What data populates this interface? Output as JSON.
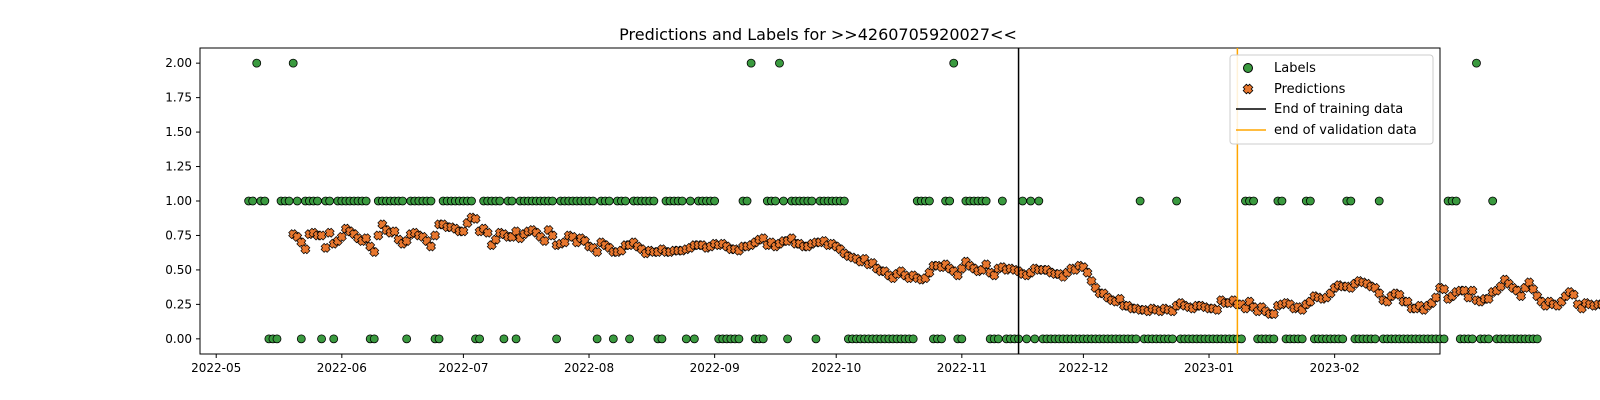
{
  "chart_data": {
    "type": "scatter",
    "title": "Predictions and Labels for >>4260705920027<<",
    "xlabel": "",
    "ylabel": "",
    "x_range": [
      "2022-04-27",
      "2023-02-27"
    ],
    "ylim": [
      -0.11,
      2.11
    ],
    "grid": false,
    "legend_position": "top-right",
    "x_ticks": [
      "2022-05",
      "2022-06",
      "2022-07",
      "2022-08",
      "2022-09",
      "2022-10",
      "2022-11",
      "2022-12",
      "2023-01",
      "2023-02"
    ],
    "x_tick_dates": [
      "2022-05-01",
      "2022-06-01",
      "2022-07-01",
      "2022-08-01",
      "2022-09-01",
      "2022-10-01",
      "2022-11-01",
      "2022-12-01",
      "2023-01-01",
      "2023-02-01"
    ],
    "y_ticks": [
      "0.00",
      "0.25",
      "0.50",
      "0.75",
      "1.00",
      "1.25",
      "1.50",
      "1.75",
      "2.00"
    ],
    "y_tick_values": [
      0,
      0.25,
      0.5,
      0.75,
      1,
      1.25,
      1.5,
      1.75,
      2
    ],
    "label_start_date": "2022-05-09",
    "labels_values": [
      1,
      1,
      2,
      1,
      1,
      0,
      0,
      0,
      1,
      1,
      1,
      2,
      1,
      0,
      1,
      1,
      1,
      1,
      0,
      1,
      1,
      0,
      1,
      1,
      1,
      1,
      1,
      1,
      1,
      1,
      0,
      0,
      1,
      1,
      1,
      1,
      1,
      1,
      1,
      0,
      1,
      1,
      1,
      1,
      1,
      1,
      0,
      0,
      1,
      1,
      1,
      1,
      1,
      1,
      1,
      1,
      0,
      0,
      1,
      1,
      1,
      1,
      1,
      0,
      1,
      1,
      0,
      1,
      1,
      1,
      1,
      1,
      1,
      1,
      1,
      1,
      0,
      1,
      1,
      1,
      1,
      1,
      1,
      1,
      1,
      1,
      0,
      1,
      1,
      1,
      0,
      1,
      1,
      1,
      0,
      1,
      1,
      1,
      1,
      1,
      1,
      0,
      0,
      1,
      1,
      1,
      1,
      1,
      0,
      1,
      0,
      1,
      1,
      1,
      1,
      1,
      0,
      0,
      0,
      0,
      0,
      0,
      1,
      1,
      2,
      0,
      0,
      0,
      1,
      1,
      1,
      2,
      1,
      0,
      1,
      1,
      1,
      1,
      1,
      1,
      0,
      1,
      1,
      1,
      1,
      1,
      1,
      1,
      0,
      0,
      0,
      0,
      0,
      0,
      0,
      0,
      0,
      0,
      0,
      0,
      0,
      0,
      0,
      0,
      0,
      1,
      1,
      1,
      1,
      0,
      0,
      0,
      1,
      1,
      2,
      0,
      0,
      1,
      1,
      1,
      1,
      1,
      1,
      0,
      0,
      0,
      1,
      0,
      0,
      0,
      0,
      1,
      0,
      1,
      0,
      1,
      0,
      0,
      0,
      0,
      0,
      0,
      0,
      0,
      0,
      0,
      0,
      0,
      0,
      0,
      0,
      0,
      0,
      0,
      0,
      0,
      0,
      0,
      0,
      0,
      1,
      0,
      0,
      0,
      0,
      0,
      0,
      0,
      0,
      1,
      0,
      0,
      0,
      0,
      0,
      0,
      0,
      0,
      0,
      0,
      0,
      0,
      0,
      0,
      0,
      0,
      1,
      1,
      1,
      0,
      0,
      0,
      0,
      0,
      1,
      1,
      0,
      0,
      0,
      0,
      0,
      1,
      1,
      0,
      0,
      0,
      0,
      0,
      0,
      0,
      0,
      1,
      1,
      0,
      0,
      0,
      0,
      0,
      0,
      1,
      0,
      0,
      0,
      0,
      0,
      0,
      0,
      0,
      0,
      0,
      0,
      0,
      0,
      0,
      0,
      0,
      1,
      1,
      1,
      0,
      0,
      0,
      0,
      2,
      0,
      0,
      0,
      1,
      0,
      0,
      0,
      0,
      0,
      0,
      0,
      0,
      0,
      0,
      0
    ],
    "prediction_start_date": "2022-05-20",
    "predictions_values": [
      0.76,
      0.74,
      0.7,
      0.65,
      0.76,
      0.77,
      0.75,
      0.75,
      0.66,
      0.77,
      0.69,
      0.71,
      0.74,
      0.8,
      0.78,
      0.76,
      0.73,
      0.71,
      0.73,
      0.67,
      0.63,
      0.75,
      0.83,
      0.79,
      0.77,
      0.78,
      0.72,
      0.69,
      0.71,
      0.76,
      0.77,
      0.75,
      0.74,
      0.71,
      0.67,
      0.75,
      0.83,
      0.83,
      0.81,
      0.81,
      0.8,
      0.78,
      0.78,
      0.84,
      0.88,
      0.87,
      0.78,
      0.8,
      0.77,
      0.68,
      0.72,
      0.77,
      0.76,
      0.74,
      0.74,
      0.78,
      0.73,
      0.76,
      0.78,
      0.79,
      0.77,
      0.74,
      0.71,
      0.79,
      0.75,
      0.68,
      0.69,
      0.7,
      0.75,
      0.74,
      0.7,
      0.73,
      0.71,
      0.67,
      0.66,
      0.63,
      0.7,
      0.68,
      0.66,
      0.63,
      0.63,
      0.64,
      0.68,
      0.68,
      0.7,
      0.67,
      0.65,
      0.62,
      0.64,
      0.63,
      0.63,
      0.65,
      0.63,
      0.63,
      0.64,
      0.64,
      0.64,
      0.65,
      0.66,
      0.68,
      0.68,
      0.68,
      0.66,
      0.67,
      0.69,
      0.68,
      0.69,
      0.67,
      0.65,
      0.65,
      0.64,
      0.67,
      0.67,
      0.68,
      0.7,
      0.72,
      0.73,
      0.68,
      0.7,
      0.67,
      0.69,
      0.71,
      0.71,
      0.73,
      0.69,
      0.69,
      0.67,
      0.67,
      0.69,
      0.7,
      0.7,
      0.71,
      0.68,
      0.69,
      0.67,
      0.65,
      0.62,
      0.6,
      0.59,
      0.58,
      0.56,
      0.58,
      0.54,
      0.55,
      0.51,
      0.49,
      0.49,
      0.46,
      0.44,
      0.47,
      0.49,
      0.46,
      0.44,
      0.46,
      0.44,
      0.43,
      0.44,
      0.48,
      0.53,
      0.53,
      0.52,
      0.54,
      0.51,
      0.49,
      0.46,
      0.51,
      0.56,
      0.53,
      0.51,
      0.49,
      0.5,
      0.54,
      0.48,
      0.46,
      0.51,
      0.52,
      0.5,
      0.51,
      0.5,
      0.49,
      0.47,
      0.46,
      0.48,
      0.51,
      0.5,
      0.5,
      0.5,
      0.48,
      0.47,
      0.47,
      0.45,
      0.48,
      0.51,
      0.5,
      0.53,
      0.52,
      0.48,
      0.42,
      0.37,
      0.33,
      0.33,
      0.3,
      0.28,
      0.27,
      0.29,
      0.24,
      0.24,
      0.22,
      0.22,
      0.21,
      0.21,
      0.2,
      0.22,
      0.21,
      0.2,
      0.22,
      0.21,
      0.2,
      0.24,
      0.26,
      0.24,
      0.23,
      0.22,
      0.24,
      0.24,
      0.23,
      0.22,
      0.22,
      0.21,
      0.28,
      0.26,
      0.26,
      0.28,
      0.25,
      0.25,
      0.22,
      0.27,
      0.23,
      0.2,
      0.23,
      0.2,
      0.18,
      0.18,
      0.24,
      0.25,
      0.26,
      0.25,
      0.22,
      0.23,
      0.21,
      0.25,
      0.27,
      0.31,
      0.3,
      0.29,
      0.3,
      0.33,
      0.37,
      0.39,
      0.38,
      0.38,
      0.37,
      0.4,
      0.42,
      0.41,
      0.4,
      0.38,
      0.37,
      0.33,
      0.28,
      0.27,
      0.31,
      0.33,
      0.32,
      0.27,
      0.27,
      0.22,
      0.22,
      0.24,
      0.21,
      0.24,
      0.26,
      0.3,
      0.37,
      0.36,
      0.29,
      0.31,
      0.34,
      0.35,
      0.35,
      0.3,
      0.35,
      0.28,
      0.27,
      0.29,
      0.29,
      0.34,
      0.35,
      0.38,
      0.43,
      0.4,
      0.37,
      0.35,
      0.31,
      0.37,
      0.41,
      0.36,
      0.31,
      0.27,
      0.24,
      0.27,
      0.25,
      0.24,
      0.27,
      0.31,
      0.34,
      0.32,
      0.25,
      0.22,
      0.26,
      0.25,
      0.24,
      0.25,
      0.25,
      0.27,
      0.28,
      0.35,
      0.36
    ],
    "vlines": [
      {
        "name": "End of training data",
        "x": "2022-11-15",
        "color": "#000000"
      },
      {
        "name": "end of validation data",
        "x": "2023-01-08",
        "color": "#ffa500"
      }
    ],
    "series": [
      {
        "name": "Labels",
        "marker": "circle",
        "color": "#3a9a3f"
      },
      {
        "name": "Predictions",
        "marker": "x",
        "color": "#e8772e"
      }
    ]
  }
}
